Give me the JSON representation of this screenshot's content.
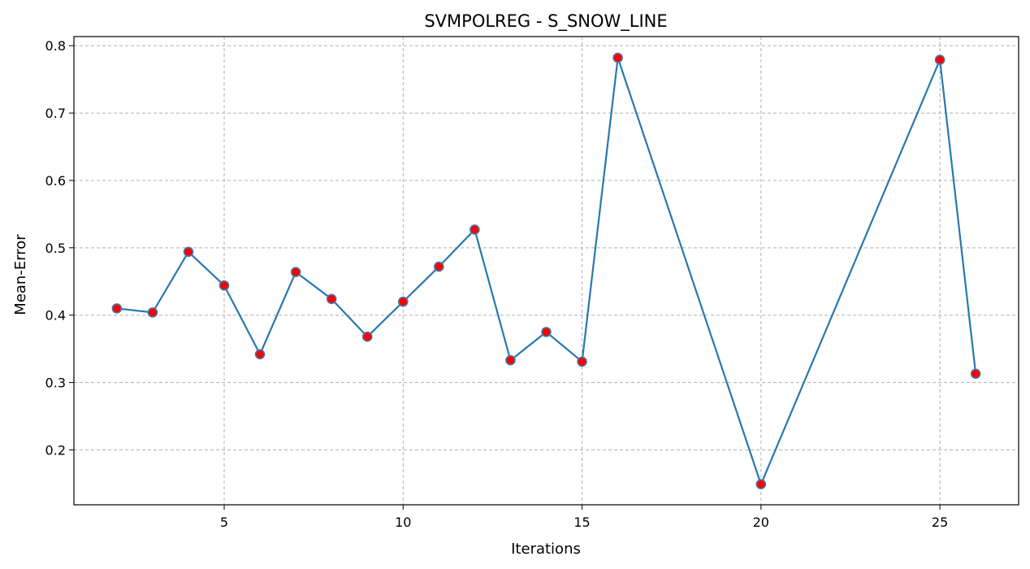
{
  "chart_data": {
    "type": "line",
    "title": "SVMPOLREG - S_SNOW_LINE",
    "xlabel": "Iterations",
    "ylabel": "Mean-Error",
    "xlim": [
      0.8,
      27.2
    ],
    "ylim": [
      0.1185,
      0.8135
    ],
    "x_ticks": [
      5,
      10,
      15,
      20,
      25
    ],
    "y_ticks": [
      0.2,
      0.3,
      0.4,
      0.5,
      0.6,
      0.7,
      0.8
    ],
    "grid": true,
    "legend": "none",
    "series": [
      {
        "x": [
          2,
          3,
          4,
          5,
          6,
          7,
          8,
          9,
          10,
          11,
          12,
          13,
          14,
          15,
          16,
          20,
          25,
          26
        ],
        "values": [
          0.41,
          0.404,
          0.494,
          0.444,
          0.342,
          0.464,
          0.424,
          0.368,
          0.42,
          0.472,
          0.527,
          0.333,
          0.375,
          0.331,
          0.782,
          0.149,
          0.779,
          0.313
        ],
        "line_color": "#2878b0",
        "marker_face": "#ff0000",
        "marker_edge": "#4a76a8"
      }
    ]
  }
}
